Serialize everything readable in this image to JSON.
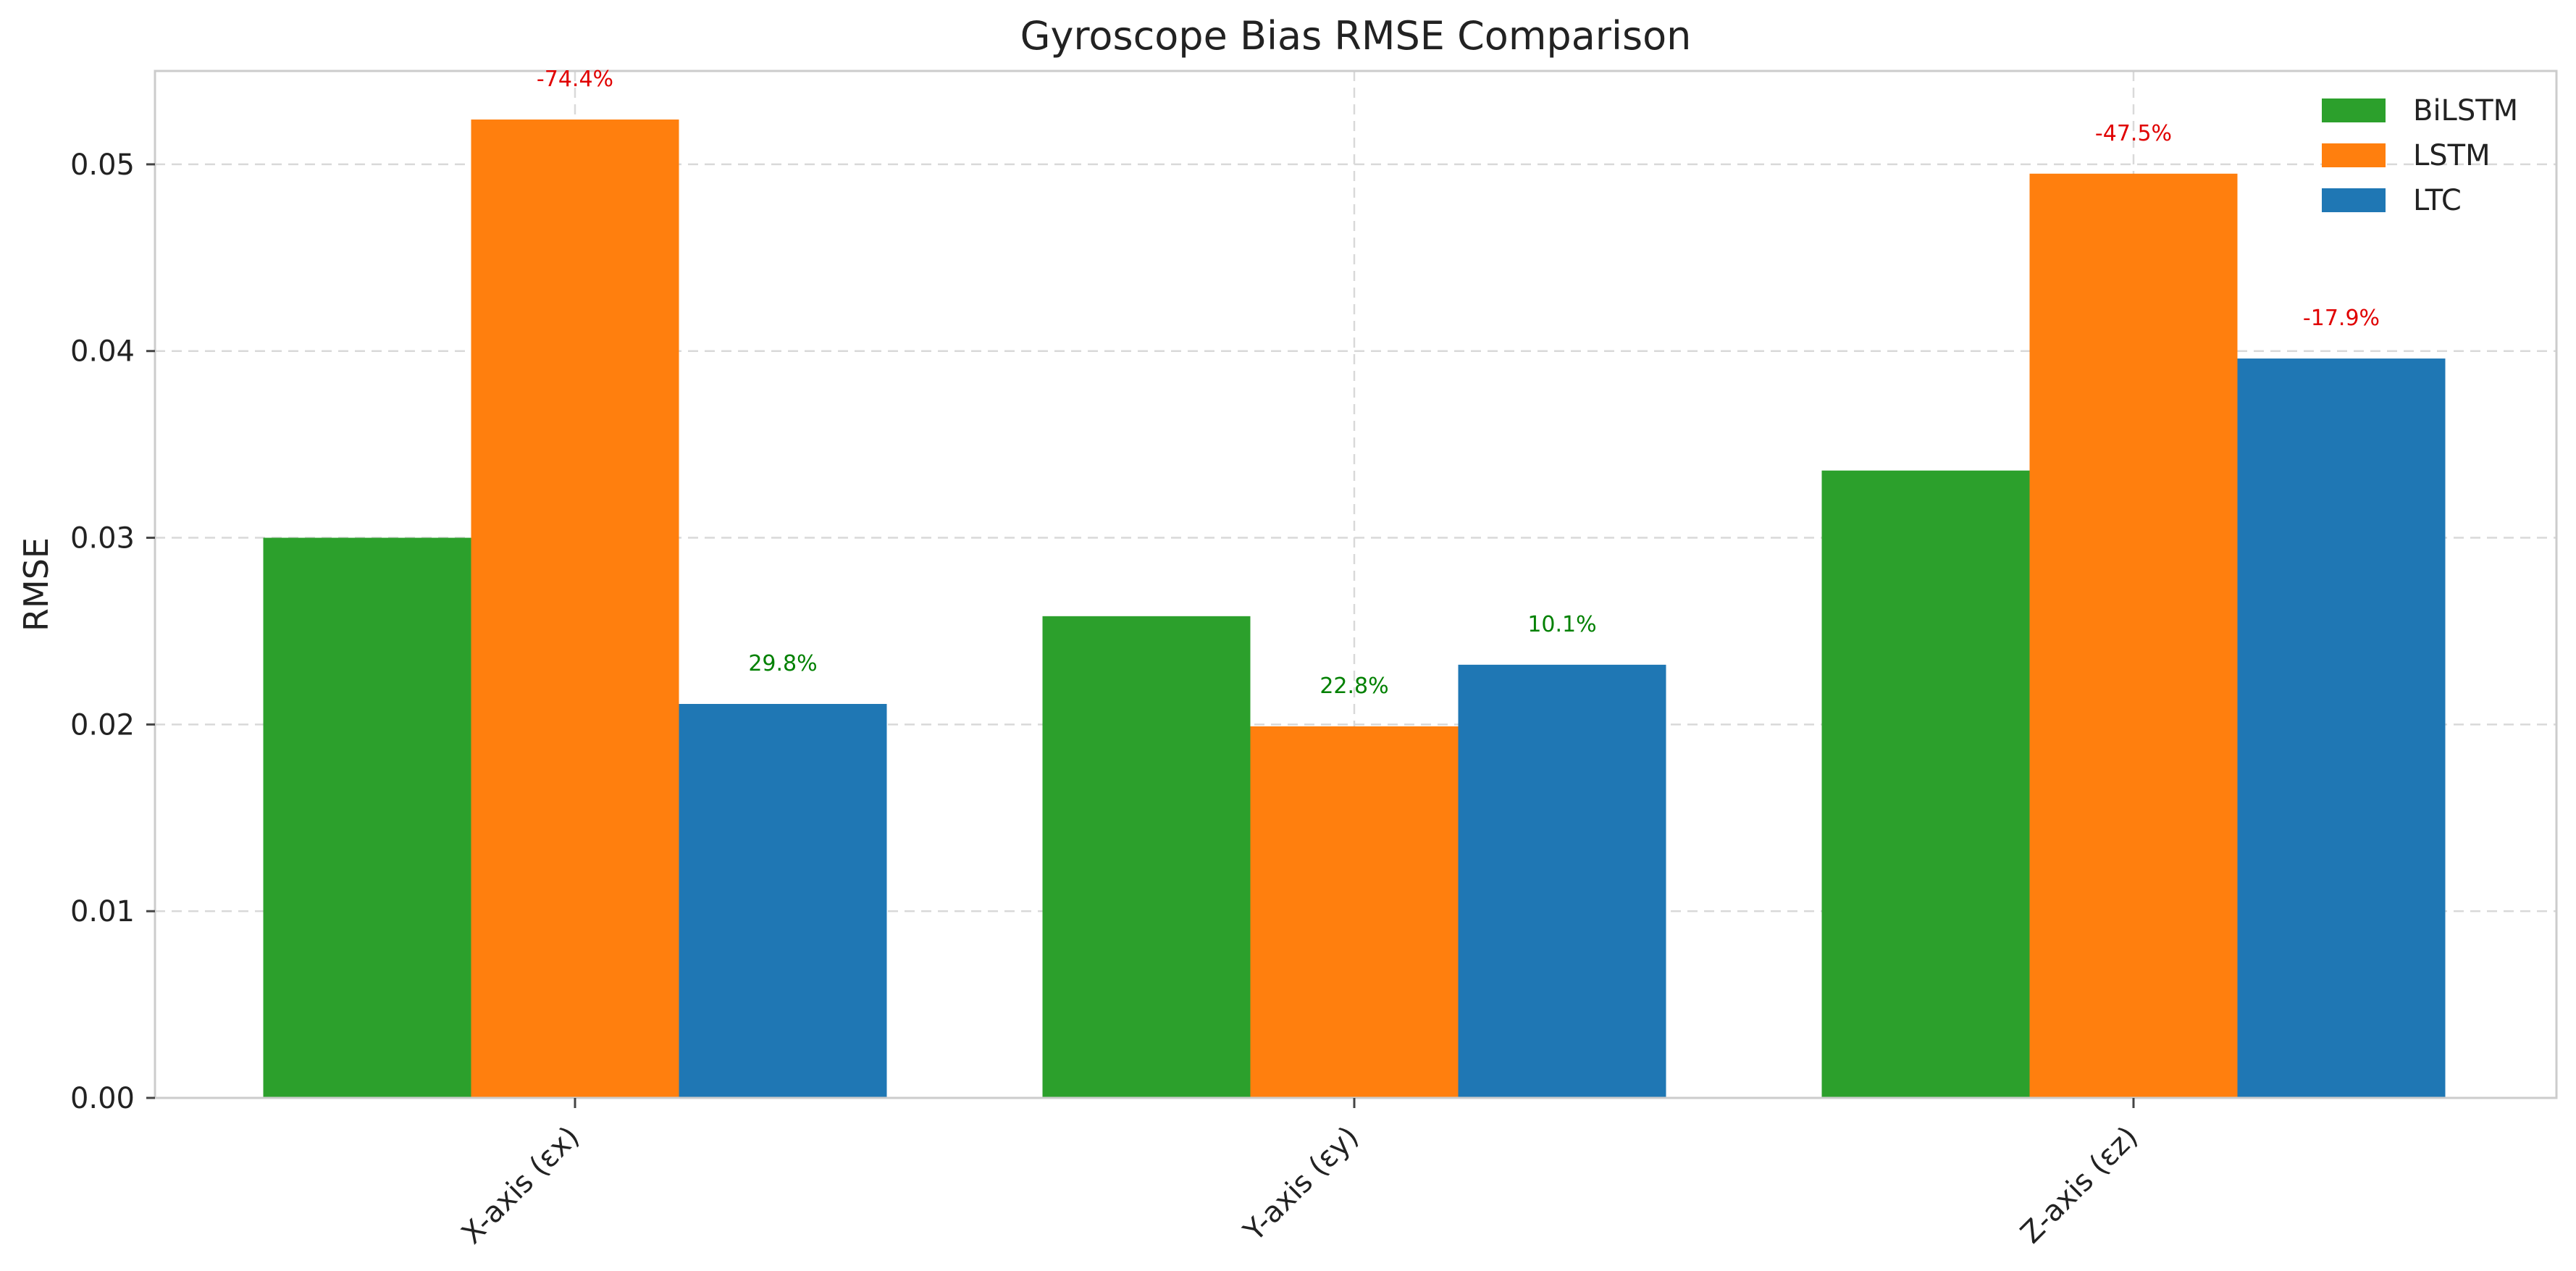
{
  "chart_data": {
    "type": "bar",
    "title": "Gyroscope Bias RMSE Comparison",
    "xlabel": "",
    "ylabel": "RMSE",
    "categories": [
      "X-axis (εx)",
      "Y-axis (εy)",
      "Z-axis (εz)"
    ],
    "series": [
      {
        "name": "BiLSTM",
        "color": "#2ca02c",
        "values": [
          0.03,
          0.0258,
          0.0336
        ]
      },
      {
        "name": "LSTM",
        "color": "#ff7f0e",
        "values": [
          0.0524,
          0.0199,
          0.0495
        ]
      },
      {
        "name": "LTC",
        "color": "#1f77b4",
        "values": [
          0.0211,
          0.0232,
          0.0396
        ]
      }
    ],
    "annotations": [
      {
        "category_index": 0,
        "series_index": 1,
        "text": "-74.4%",
        "color": "#e00000"
      },
      {
        "category_index": 0,
        "series_index": 2,
        "text": "29.8%",
        "color": "#008000"
      },
      {
        "category_index": 1,
        "series_index": 1,
        "text": "22.8%",
        "color": "#008000"
      },
      {
        "category_index": 1,
        "series_index": 2,
        "text": "10.1%",
        "color": "#008000"
      },
      {
        "category_index": 2,
        "series_index": 1,
        "text": "-47.5%",
        "color": "#e00000"
      },
      {
        "category_index": 2,
        "series_index": 2,
        "text": "-17.9%",
        "color": "#e00000"
      }
    ],
    "y_ticks": [
      "0.00",
      "0.01",
      "0.02",
      "0.03",
      "0.04",
      "0.05"
    ],
    "ylim": [
      0,
      0.055
    ],
    "grid": true,
    "legend_position": "top-right",
    "x_tick_rotation_deg": 45
  }
}
